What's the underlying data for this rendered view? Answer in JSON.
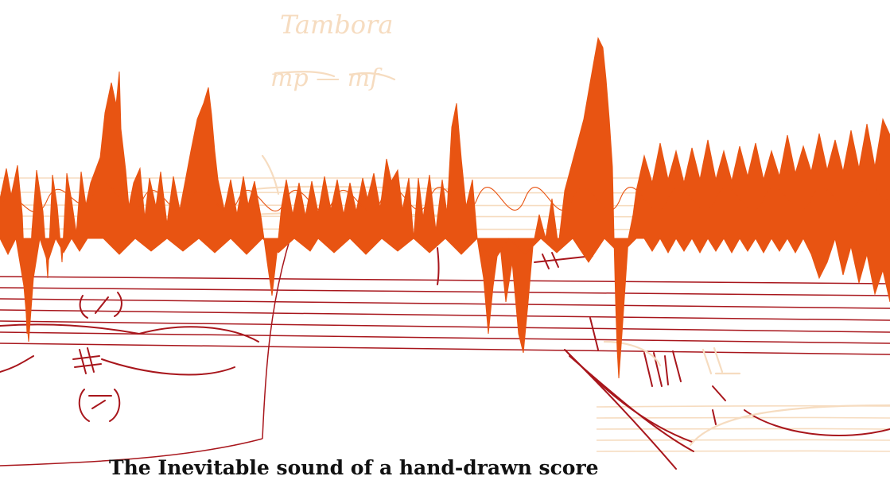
{
  "colors": {
    "background": "#ffffff",
    "waveform": "#e85412",
    "staff_dark": "#a8161c",
    "staff_pale": "#f6dcc0",
    "caption_text": "#111111"
  },
  "score": {
    "instrument_label": "Tambora",
    "dynamic_marking": "mp — mf"
  },
  "caption": {
    "text": "The Inevitable sound of a hand-drawn score"
  }
}
